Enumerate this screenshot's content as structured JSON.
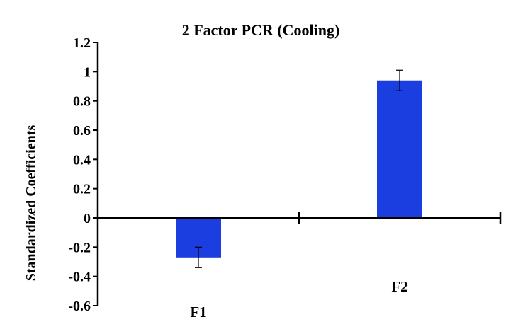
{
  "chart_data": {
    "type": "bar",
    "title": "2 Factor PCR (Cooling)",
    "xlabel": "",
    "ylabel": "Standardized Coefficients",
    "categories": [
      "F1",
      "F2"
    ],
    "values": [
      -0.27,
      0.94
    ],
    "error": [
      0.07,
      0.07
    ],
    "ylim": [
      -0.6,
      1.2
    ],
    "yticks": [
      "1.2",
      "1",
      "0.8",
      "0.6",
      "0.4",
      "0.2",
      "0",
      "-0.2",
      "-0.4",
      "-0.6"
    ],
    "bar_color": "#1a3ee0",
    "grid": false,
    "legend": "none"
  }
}
